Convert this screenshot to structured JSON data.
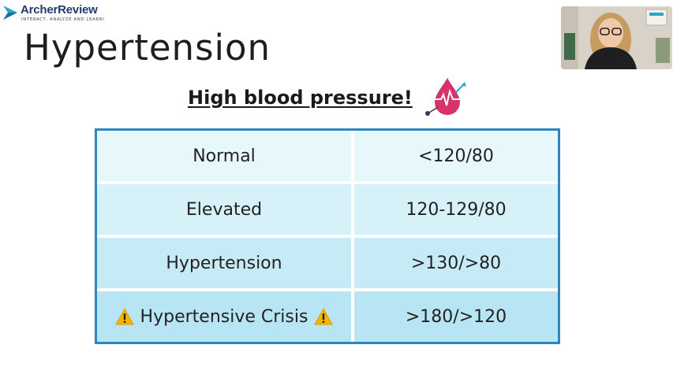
{
  "brand": {
    "name": "ArcherReview",
    "tagline": "INTERACT, ANALYZE AND LEARN!"
  },
  "slide": {
    "title": "Hypertension",
    "subtitle": "High blood pressure!"
  },
  "table": {
    "rows": [
      {
        "category": "Normal",
        "value": "<120/80",
        "warning": false
      },
      {
        "category": "Elevated",
        "value": "120-129/80",
        "warning": false
      },
      {
        "category": "Hypertension",
        "value": ">130/>80",
        "warning": false
      },
      {
        "category": "Hypertensive Crisis",
        "value": ">180/>120",
        "warning": true
      }
    ]
  },
  "icons": {
    "blood_drop": "blood-drop-heartbeat-icon",
    "warning": "warning-icon",
    "logo": "archer-logo-icon"
  },
  "colors": {
    "table_border": "#2f86bf",
    "drop": "#d6336c",
    "warning": "#f5b400",
    "brand": "#243a6b"
  }
}
